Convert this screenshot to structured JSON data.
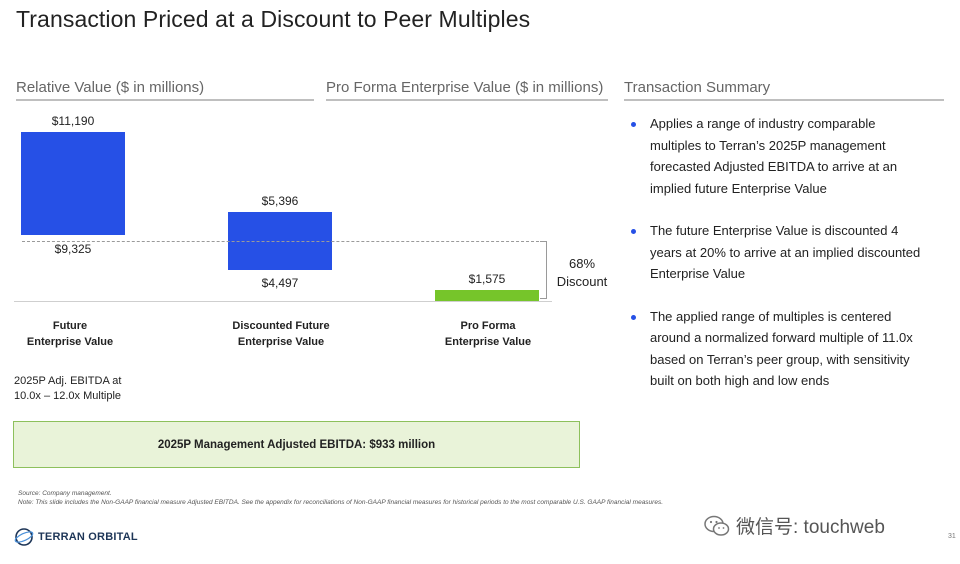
{
  "title": "Transaction Priced at a Discount to Peer Multiples",
  "sections": {
    "relative_value": "Relative Value ($ in millions)",
    "pro_forma": "Pro Forma Enterprise Value ($ in millions)",
    "transaction_summary": "Transaction Summary"
  },
  "chart_data": {
    "type": "bar",
    "categories": [
      "Future\nEnterprise Value",
      "Discounted Future\nEnterprise Value",
      "Pro Forma\nEnterprise Value"
    ],
    "ranges": [
      {
        "low": 9325,
        "high": 11190,
        "low_label": "$9,325",
        "high_label": "$11,190"
      },
      {
        "low": 4497,
        "high": 5396,
        "low_label": "$4,497",
        "high_label": "$5,396"
      },
      {
        "low": 0,
        "high": 1575,
        "value_label": "$1,575"
      }
    ],
    "annotation": "68%\nDiscount",
    "colors": {
      "range_bar": "#2650e6",
      "pro_forma_bar": "#76c52a"
    }
  },
  "left_note": "2025P Adj. EBITDA at\n10.0x – 12.0x Multiple",
  "ebitda_box": "2025P Management Adjusted EBITDA: $933 million",
  "bullets": [
    "Applies a range of industry comparable multiples to Terran’s 2025P management forecasted Adjusted EBITDA to arrive at an implied future Enterprise Value",
    "The future Enterprise Value is discounted 4 years at 20% to arrive at an implied discounted Enterprise Value",
    "The applied range of multiples is centered around a normalized forward multiple of 11.0x based on Terran’s peer group, with sensitivity built on both high and low ends"
  ],
  "source": "Source: Company management.",
  "note": "Note: This slide includes the Non-GAAP financial measure Adjusted EBITDA. See the appendix for reconciliations of Non-GAAP financial measures for historical periods to the most comparable U.S. GAAP financial measures.",
  "logo_text": "TERRAN ORBITAL",
  "watermark": "微信号: touchweb",
  "page_number": "31"
}
